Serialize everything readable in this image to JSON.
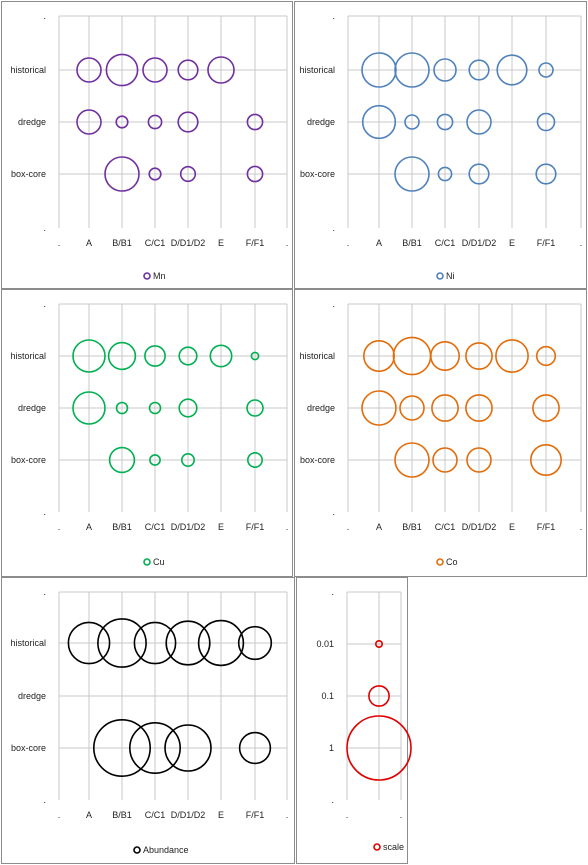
{
  "chart_data": [
    {
      "type": "scatter",
      "variant": "bubble",
      "series": [
        {
          "name": "Mn",
          "color": "#7030a0"
        }
      ],
      "x_categories": [
        ".",
        "A",
        "B/B1",
        "C/C1",
        "D/D1/D2",
        "E",
        "F/F1",
        "."
      ],
      "y_categories": [
        ".",
        "box-core",
        "dredge",
        "historical",
        "."
      ],
      "points": [
        {
          "x": "A",
          "y": "historical",
          "size": 0.3
        },
        {
          "x": "B/B1",
          "y": "historical",
          "size": 0.5
        },
        {
          "x": "C/C1",
          "y": "historical",
          "size": 0.3
        },
        {
          "x": "D/D1/D2",
          "y": "historical",
          "size": 0.2
        },
        {
          "x": "E",
          "y": "historical",
          "size": 0.35
        },
        {
          "x": "A",
          "y": "dredge",
          "size": 0.3
        },
        {
          "x": "B/B1",
          "y": "dredge",
          "size": 0.07
        },
        {
          "x": "C/C1",
          "y": "dredge",
          "size": 0.09
        },
        {
          "x": "D/D1/D2",
          "y": "dredge",
          "size": 0.2
        },
        {
          "x": "F/F1",
          "y": "dredge",
          "size": 0.12
        },
        {
          "x": "B/B1",
          "y": "box-core",
          "size": 0.6
        },
        {
          "x": "C/C1",
          "y": "box-core",
          "size": 0.07
        },
        {
          "x": "D/D1/D2",
          "y": "box-core",
          "size": 0.11
        },
        {
          "x": "F/F1",
          "y": "box-core",
          "size": 0.12
        }
      ]
    },
    {
      "type": "scatter",
      "variant": "bubble",
      "series": [
        {
          "name": "Ni",
          "color": "#4f81bd"
        }
      ],
      "x_categories": [
        ".",
        "A",
        "B/B1",
        "C/C1",
        "D/D1/D2",
        "E",
        "F/F1",
        "."
      ],
      "y_categories": [
        ".",
        "box-core",
        "dredge",
        "historical",
        "."
      ],
      "points": [
        {
          "x": "A",
          "y": "historical",
          "size": 0.6
        },
        {
          "x": "B/B1",
          "y": "historical",
          "size": 0.6
        },
        {
          "x": "C/C1",
          "y": "historical",
          "size": 0.25
        },
        {
          "x": "D/D1/D2",
          "y": "historical",
          "size": 0.2
        },
        {
          "x": "E",
          "y": "historical",
          "size": 0.45
        },
        {
          "x": "F/F1",
          "y": "historical",
          "size": 0.1
        },
        {
          "x": "A",
          "y": "dredge",
          "size": 0.55
        },
        {
          "x": "B/B1",
          "y": "dredge",
          "size": 0.1
        },
        {
          "x": "C/C1",
          "y": "dredge",
          "size": 0.12
        },
        {
          "x": "D/D1/D2",
          "y": "dredge",
          "size": 0.3
        },
        {
          "x": "F/F1",
          "y": "dredge",
          "size": 0.15
        },
        {
          "x": "B/B1",
          "y": "box-core",
          "size": 0.6
        },
        {
          "x": "C/C1",
          "y": "box-core",
          "size": 0.09
        },
        {
          "x": "D/D1/D2",
          "y": "box-core",
          "size": 0.2
        },
        {
          "x": "F/F1",
          "y": "box-core",
          "size": 0.2
        }
      ]
    },
    {
      "type": "scatter",
      "variant": "bubble",
      "series": [
        {
          "name": "Cu",
          "color": "#00b050"
        }
      ],
      "x_categories": [
        ".",
        "A",
        "B/B1",
        "C/C1",
        "D/D1/D2",
        "E",
        "F/F1",
        "."
      ],
      "y_categories": [
        ".",
        "box-core",
        "dredge",
        "historical",
        "."
      ],
      "points": [
        {
          "x": "A",
          "y": "historical",
          "size": 1.0
        },
        {
          "x": "B/B1",
          "y": "historical",
          "size": 0.7
        },
        {
          "x": "C/C1",
          "y": "historical",
          "size": 0.4
        },
        {
          "x": "D/D1/D2",
          "y": "historical",
          "size": 0.3
        },
        {
          "x": "E",
          "y": "historical",
          "size": 0.45
        },
        {
          "x": "F/F1",
          "y": "historical",
          "size": 0.05
        },
        {
          "x": "A",
          "y": "dredge",
          "size": 1.0
        },
        {
          "x": "B/B1",
          "y": "dredge",
          "size": 0.12
        },
        {
          "x": "C/C1",
          "y": "dredge",
          "size": 0.12
        },
        {
          "x": "D/D1/D2",
          "y": "dredge",
          "size": 0.3
        },
        {
          "x": "F/F1",
          "y": "dredge",
          "size": 0.25
        },
        {
          "x": "B/B1",
          "y": "box-core",
          "size": 0.6
        },
        {
          "x": "C/C1",
          "y": "box-core",
          "size": 0.1
        },
        {
          "x": "D/D1/D2",
          "y": "box-core",
          "size": 0.15
        },
        {
          "x": "F/F1",
          "y": "box-core",
          "size": 0.2
        }
      ]
    },
    {
      "type": "scatter",
      "variant": "bubble",
      "series": [
        {
          "name": "Co",
          "color": "#e36c09"
        }
      ],
      "x_categories": [
        ".",
        "A",
        "B/B1",
        "C/C1",
        "D/D1/D2",
        "E",
        "F/F1",
        "."
      ],
      "y_categories": [
        ".",
        "box-core",
        "dredge",
        "historical",
        "."
      ],
      "points": [
        {
          "x": "A",
          "y": "historical",
          "size": 0.4
        },
        {
          "x": "B/B1",
          "y": "historical",
          "size": 0.6
        },
        {
          "x": "C/C1",
          "y": "historical",
          "size": 0.35
        },
        {
          "x": "D/D1/D2",
          "y": "historical",
          "size": 0.3
        },
        {
          "x": "E",
          "y": "historical",
          "size": 0.45
        },
        {
          "x": "F/F1",
          "y": "historical",
          "size": 0.15
        },
        {
          "x": "A",
          "y": "dredge",
          "size": 0.5
        },
        {
          "x": "B/B1",
          "y": "dredge",
          "size": 0.25
        },
        {
          "x": "C/C1",
          "y": "dredge",
          "size": 0.3
        },
        {
          "x": "D/D1/D2",
          "y": "dredge",
          "size": 0.3
        },
        {
          "x": "F/F1",
          "y": "dredge",
          "size": 0.3
        },
        {
          "x": "B/B1",
          "y": "box-core",
          "size": 0.5
        },
        {
          "x": "C/C1",
          "y": "box-core",
          "size": 0.25
        },
        {
          "x": "D/D1/D2",
          "y": "box-core",
          "size": 0.25
        },
        {
          "x": "F/F1",
          "y": "box-core",
          "size": 0.4
        }
      ]
    },
    {
      "type": "scatter",
      "variant": "bubble",
      "series": [
        {
          "name": "Abundance",
          "color": "#000000"
        }
      ],
      "x_categories": [
        ".",
        "A",
        "B/B1",
        "C/C1",
        "D/D1/D2",
        "E",
        "F/F1",
        "."
      ],
      "y_categories": [
        ".",
        "box-core",
        "dredge",
        "historical",
        "."
      ],
      "points": [
        {
          "x": "A",
          "y": "historical",
          "size": 0.8
        },
        {
          "x": "B/B1",
          "y": "historical",
          "size": 1.1
        },
        {
          "x": "C/C1",
          "y": "historical",
          "size": 0.8
        },
        {
          "x": "D/D1/D2",
          "y": "historical",
          "size": 0.9
        },
        {
          "x": "E",
          "y": "historical",
          "size": 0.95
        },
        {
          "x": "F/F1",
          "y": "historical",
          "size": 0.5
        },
        {
          "x": "B/B1",
          "y": "box-core",
          "size": 1.5
        },
        {
          "x": "C/C1",
          "y": "box-core",
          "size": 1.2
        },
        {
          "x": "D/D1/D2",
          "y": "box-core",
          "size": 1.0
        },
        {
          "x": "F/F1",
          "y": "box-core",
          "size": 0.45
        }
      ]
    },
    {
      "type": "scatter",
      "variant": "bubble",
      "series": [
        {
          "name": "scale",
          "color": "#e00000"
        }
      ],
      "x_categories": [
        ".",
        "",
        "."
      ],
      "y_categories": [
        ".",
        "1",
        "0.1",
        "0.01",
        "."
      ],
      "points": [
        {
          "x": "",
          "y": "0.01",
          "size": 0.01
        },
        {
          "x": "",
          "y": "0.1",
          "size": 0.1
        },
        {
          "x": "",
          "y": "1",
          "size": 1
        }
      ]
    }
  ]
}
